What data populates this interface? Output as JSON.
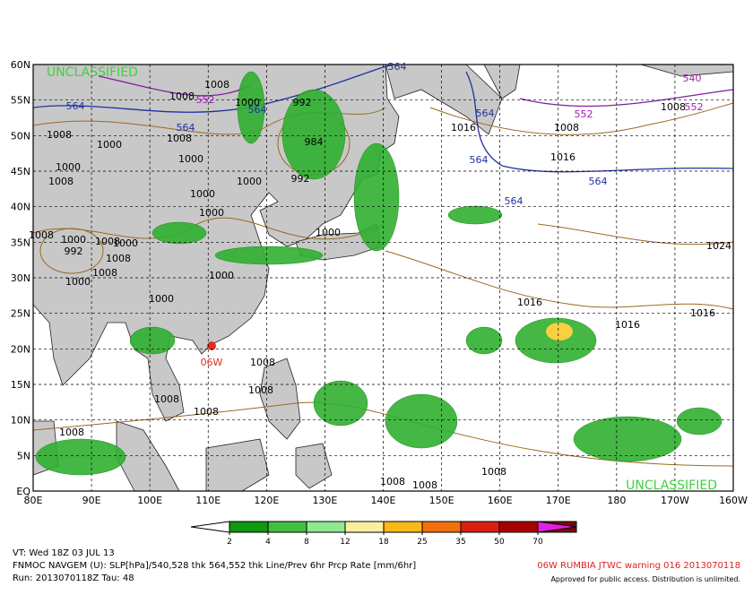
{
  "map": {
    "classification_top": "UNCLASSIFIED",
    "classification_bottom": "UNCLASSIFIED",
    "lat_labels": [
      "60N",
      "55N",
      "50N",
      "45N",
      "40N",
      "35N",
      "30N",
      "25N",
      "20N",
      "15N",
      "10N",
      "5N",
      "EQ"
    ],
    "lon_labels": [
      "80E",
      "90E",
      "100E",
      "110E",
      "120E",
      "130E",
      "140E",
      "150E",
      "160E",
      "170E",
      "180",
      "170W",
      "160W"
    ],
    "storm_label": "06W",
    "slp_labels": [
      "1008",
      "1008",
      "1000",
      "992",
      "1008",
      "1000",
      "1008",
      "984",
      "1000",
      "1000",
      "1008",
      "1000",
      "992",
      "1016",
      "1008",
      "1016",
      "1008",
      "1000",
      "1000",
      "1000",
      "1008",
      "1000",
      "992",
      "1008",
      "1000",
      "1008",
      "1008",
      "1000",
      "1000",
      "1000",
      "1016",
      "1016",
      "1016",
      "1024",
      "1008",
      "1008",
      "1008",
      "1008",
      "1008",
      "1008",
      "1008",
      "1008"
    ],
    "thk564_labels": [
      "564",
      "564",
      "564",
      "564",
      "564",
      "564",
      "564",
      "564"
    ],
    "thk552_labels": [
      "552",
      "552",
      "540",
      "552"
    ],
    "colorbar": {
      "ticks": [
        2,
        4,
        8,
        12,
        18,
        25,
        35,
        50,
        70
      ],
      "colors": [
        "#ffffff",
        "#109810",
        "#40c040",
        "#90e890",
        "#f8f0a0",
        "#f8b818",
        "#f07010",
        "#d82010",
        "#a80000",
        "#800010",
        "#e020e0"
      ]
    },
    "footer": {
      "valid": "VT: Wed 18Z 03 JUL 13",
      "model": "FNMOC NAVGEM (U): SLP[hPa]/540,528 thk 564,552 thk Line/Prev 6hr Prcp Rate [mm/6hr]",
      "run": "Run: 2013070118Z Tau: 48",
      "warning": "06W RUMBIA JTWC warning 016 2013070118",
      "release": "Approved for public access. Distribution is unlimited."
    }
  }
}
